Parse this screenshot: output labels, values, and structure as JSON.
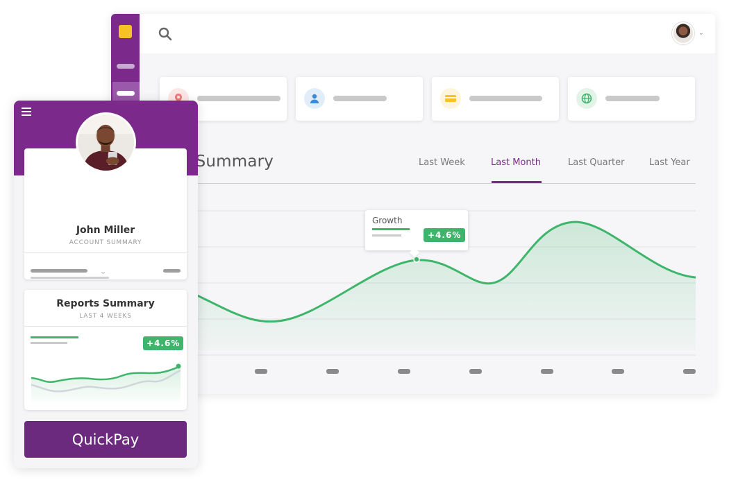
{
  "colors": {
    "brand_purple": "#7b2a8b",
    "accent_green": "#3fb56b",
    "logo_yellow": "#f6c323"
  },
  "desktop": {
    "topbar": {
      "search_icon": "search-icon",
      "avatar_icon": "user-avatar"
    },
    "stat_cards": [
      {
        "icon": "location-pin-icon",
        "icon_color": "#f07a7a",
        "icon_bg": "#fde6e6"
      },
      {
        "icon": "user-icon",
        "icon_color": "#3b8ad8",
        "icon_bg": "#e1eef9"
      },
      {
        "icon": "credit-card-icon",
        "icon_color": "#f6c323",
        "icon_bg": "#fdf4dc"
      },
      {
        "icon": "globe-icon",
        "icon_color": "#3fb56b",
        "icon_bg": "#e2f4e8"
      }
    ],
    "reports": {
      "title": "rts Summary",
      "tabs": [
        {
          "label": "Last Week",
          "active": false
        },
        {
          "label": "Last Month",
          "active": true
        },
        {
          "label": "Last Quarter",
          "active": false
        },
        {
          "label": "Last Year",
          "active": false
        }
      ],
      "tooltip": {
        "label": "Growth",
        "value": "+4.6%"
      }
    }
  },
  "mobile": {
    "menu_icon": "hamburger-icon",
    "profile": {
      "name": "John Miller",
      "subtitle": "ACCOUNT SUMMARY"
    },
    "reports_card": {
      "title": "Reports Summary",
      "subtitle": "LAST 4 WEEKS",
      "badge": "+4.6%"
    },
    "quickpay_label": "QuickPay"
  }
}
